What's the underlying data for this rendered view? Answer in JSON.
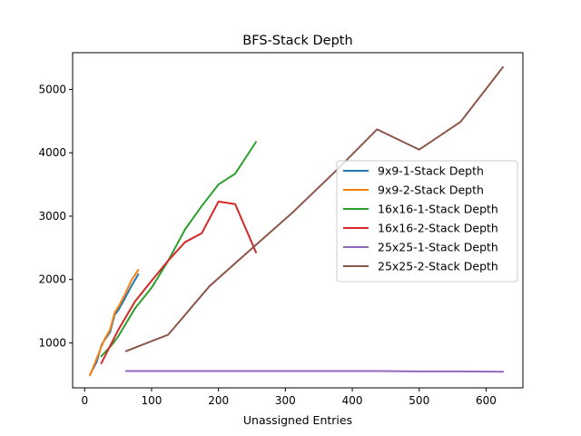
{
  "chart_data": {
    "type": "line",
    "title": "BFS-Stack Depth",
    "xlabel": "Unassigned Entries",
    "ylabel": "",
    "xlim": [
      -18,
      655
    ],
    "ylim": [
      290,
      5580
    ],
    "xticks": [
      0,
      100,
      200,
      300,
      400,
      500,
      600
    ],
    "yticks": [
      1000,
      2000,
      3000,
      4000,
      5000
    ],
    "grid": false,
    "legend_position": "center-right",
    "series": [
      {
        "name": "9x9-1-Stack Depth",
        "color": "#1f77b4",
        "points": [
          [
            8,
            500
          ],
          [
            18,
            700
          ],
          [
            25,
            960
          ],
          [
            30,
            1050
          ],
          [
            38,
            1170
          ],
          [
            45,
            1450
          ],
          [
            50,
            1510
          ],
          [
            60,
            1700
          ],
          [
            70,
            1900
          ],
          [
            80,
            2080
          ]
        ]
      },
      {
        "name": "9x9-2-Stack Depth",
        "color": "#ff7f0e",
        "points": [
          [
            8,
            490
          ],
          [
            16,
            700
          ],
          [
            25,
            940
          ],
          [
            30,
            1060
          ],
          [
            38,
            1210
          ],
          [
            45,
            1480
          ],
          [
            52,
            1600
          ],
          [
            60,
            1760
          ],
          [
            70,
            1990
          ],
          [
            80,
            2150
          ]
        ]
      },
      {
        "name": "16x16-1-Stack Depth",
        "color": "#2ca02c",
        "points": [
          [
            25,
            790
          ],
          [
            40,
            960
          ],
          [
            50,
            1100
          ],
          [
            75,
            1540
          ],
          [
            100,
            1870
          ],
          [
            125,
            2300
          ],
          [
            150,
            2790
          ],
          [
            175,
            3160
          ],
          [
            200,
            3500
          ],
          [
            225,
            3670
          ],
          [
            256,
            4170
          ]
        ]
      },
      {
        "name": "16x16-2-Stack Depth",
        "color": "#d62728",
        "points": [
          [
            25,
            680
          ],
          [
            50,
            1200
          ],
          [
            75,
            1650
          ],
          [
            100,
            1980
          ],
          [
            125,
            2300
          ],
          [
            150,
            2590
          ],
          [
            175,
            2730
          ],
          [
            200,
            3230
          ],
          [
            225,
            3190
          ],
          [
            256,
            2430
          ]
        ]
      },
      {
        "name": "25x25-1-Stack Depth",
        "color": "#9467bd",
        "points": [
          [
            62,
            555
          ],
          [
            125,
            555
          ],
          [
            187,
            555
          ],
          [
            250,
            555
          ],
          [
            312,
            555
          ],
          [
            375,
            555
          ],
          [
            437,
            555
          ],
          [
            500,
            550
          ],
          [
            562,
            550
          ],
          [
            625,
            545
          ]
        ]
      },
      {
        "name": "25x25-2-Stack Depth",
        "color": "#8c564b",
        "points": [
          [
            62,
            870
          ],
          [
            125,
            1130
          ],
          [
            187,
            1900
          ],
          [
            250,
            2490
          ],
          [
            312,
            3070
          ],
          [
            375,
            3710
          ],
          [
            437,
            4370
          ],
          [
            500,
            4050
          ],
          [
            562,
            4490
          ],
          [
            625,
            5350
          ]
        ]
      }
    ]
  }
}
